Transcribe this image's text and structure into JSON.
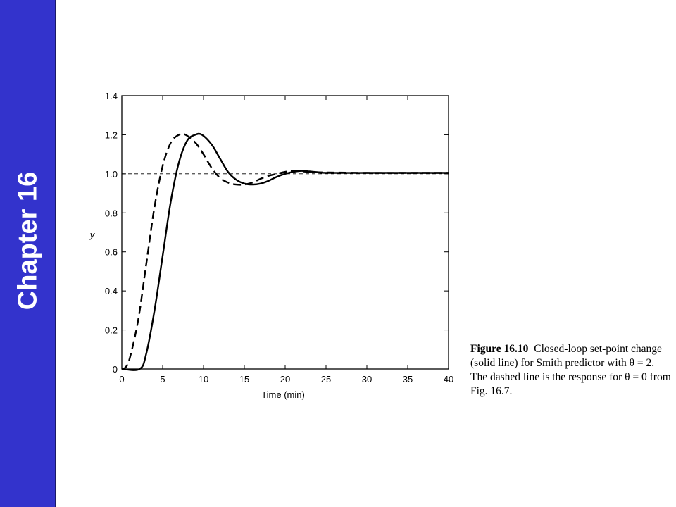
{
  "sidebar": {
    "label": "Chapter 16",
    "color": "#3333cc"
  },
  "caption": {
    "figure_number": "Figure 16.10",
    "text": "Closed-loop set-point change (solid line) for Smith predictor with θ = 2. The dashed line is the response for θ = 0 from Fig. 16.7."
  },
  "chart_data": {
    "type": "line",
    "xlabel": "Time (min)",
    "ylabel": "y",
    "xlim": [
      0,
      40
    ],
    "ylim": [
      0,
      1.4
    ],
    "x_ticks": [
      0,
      5,
      10,
      15,
      20,
      25,
      30,
      35,
      40
    ],
    "y_ticks": [
      0,
      0.2,
      0.4,
      0.6,
      0.8,
      1.0,
      1.2,
      1.4
    ],
    "y_tick_labels": [
      "0",
      "0.2",
      "0.4",
      "0.6",
      "0.8",
      "1.0",
      "1.2",
      "1.4"
    ],
    "reference_line": {
      "y": 1.0,
      "style": "dashed"
    },
    "series": [
      {
        "style": "solid",
        "x": [
          0,
          2.2,
          3,
          4,
          5,
          6,
          7,
          8,
          9,
          9.8,
          11,
          12,
          13,
          14,
          15,
          16,
          17,
          18,
          19,
          20,
          21,
          22,
          23,
          24,
          25,
          30,
          35,
          40
        ],
        "y": [
          0,
          0,
          0.08,
          0.3,
          0.58,
          0.86,
          1.06,
          1.17,
          1.2,
          1.2,
          1.15,
          1.08,
          1.01,
          0.97,
          0.95,
          0.945,
          0.95,
          0.965,
          0.985,
          1.0,
          1.01,
          1.015,
          1.012,
          1.008,
          1.005,
          1.005,
          1.005,
          1.005
        ]
      },
      {
        "style": "dashed",
        "x": [
          0,
          0.5,
          1,
          2,
          3,
          4,
          5,
          6,
          7,
          7.8,
          9,
          10,
          11,
          12,
          13,
          14,
          15,
          16,
          17,
          18,
          19,
          20,
          21,
          22,
          23,
          25,
          30,
          35,
          40
        ],
        "y": [
          0,
          0.01,
          0.06,
          0.25,
          0.54,
          0.83,
          1.04,
          1.16,
          1.2,
          1.2,
          1.16,
          1.1,
          1.03,
          0.98,
          0.955,
          0.945,
          0.945,
          0.955,
          0.975,
          0.99,
          1.0,
          1.01,
          1.015,
          1.013,
          1.01,
          1.007,
          1.005,
          1.005,
          1.005
        ]
      }
    ]
  }
}
